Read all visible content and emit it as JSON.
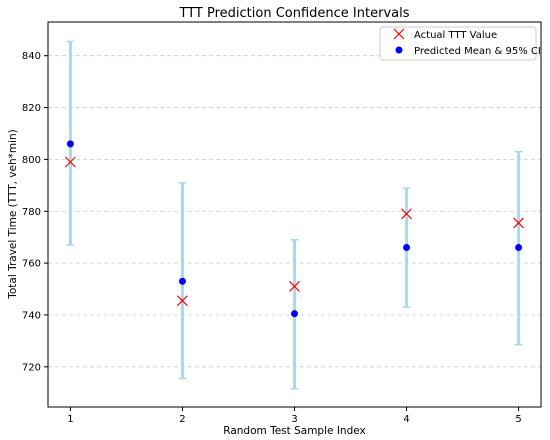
{
  "chart_data": {
    "type": "scatter",
    "title": "TTT Prediction Confidence Intervals",
    "xlabel": "Random Test Sample Index",
    "ylabel": "Total Travel Time (TTT, veh*min)",
    "xlim": [
      0.8,
      5.2
    ],
    "ylim": [
      704.5,
      853
    ],
    "x_ticks": [
      1,
      2,
      3,
      4,
      5
    ],
    "y_ticks": [
      720,
      740,
      760,
      780,
      800,
      820,
      840
    ],
    "grid": "horizontal-dashed",
    "legend_position": "top-right",
    "x": [
      1,
      2,
      3,
      4,
      5
    ],
    "series": [
      {
        "name": "Actual TTT Value",
        "marker": "x",
        "color": "#ff0000",
        "values": [
          799,
          745.5,
          751,
          779,
          775.5
        ]
      },
      {
        "name": "Predicted Mean & 95% CI",
        "marker": "circle",
        "color": "#0000ff",
        "errorbar_color": "#add8e6",
        "values": [
          806,
          753,
          740.5,
          766,
          766
        ],
        "ci_lower": [
          767,
          715.5,
          711.5,
          743,
          728.5
        ],
        "ci_upper": [
          845.5,
          791,
          769,
          789,
          803
        ]
      }
    ]
  }
}
